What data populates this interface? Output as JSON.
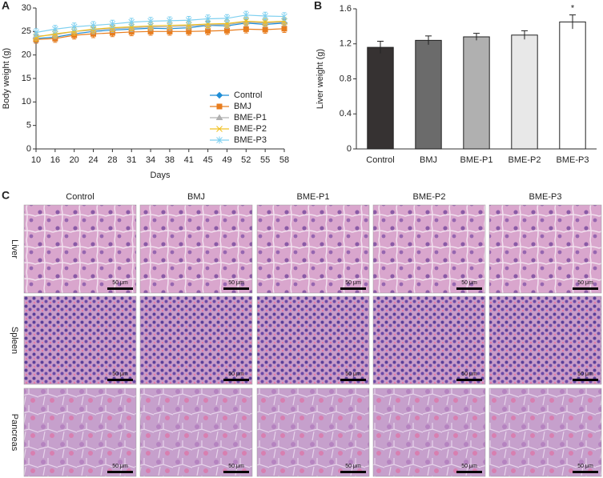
{
  "chart_data": [
    {
      "type": "line",
      "panel_label": "A",
      "x_label": "Days",
      "y_label": "Body weight (g)",
      "categories": [
        "10",
        "16",
        "20",
        "24",
        "28",
        "31",
        "34",
        "38",
        "41",
        "45",
        "49",
        "52",
        "55",
        "58"
      ],
      "ylim": [
        0,
        30
      ],
      "yticks": [
        0,
        5,
        10,
        15,
        20,
        25,
        30
      ],
      "legend": "center right",
      "series": [
        {
          "name": "Control",
          "color": "#1f8dd6",
          "marker": "diamond",
          "values": [
            23.5,
            23.8,
            24.5,
            25,
            25.3,
            25.5,
            25.7,
            25.6,
            25.8,
            26.3,
            26.2,
            26.8,
            26.5,
            26.8
          ],
          "errors": [
            0.8,
            0.8,
            0.8,
            0.8,
            0.8,
            0.8,
            0.8,
            0.8,
            0.8,
            0.8,
            0.8,
            0.8,
            0.8,
            0.8
          ]
        },
        {
          "name": "BMJ",
          "color": "#e87d1e",
          "marker": "square",
          "values": [
            23.3,
            23.5,
            24.2,
            24.5,
            24.7,
            24.9,
            25,
            25,
            25,
            25.1,
            25.2,
            25.5,
            25.4,
            25.6
          ],
          "errors": [
            0.8,
            0.8,
            0.8,
            0.8,
            0.8,
            0.8,
            0.8,
            0.8,
            0.8,
            0.8,
            0.8,
            0.8,
            0.8,
            0.8
          ]
        },
        {
          "name": "BME-P1",
          "color": "#b0b0b0",
          "marker": "triangle",
          "values": [
            24,
            24.3,
            25,
            25.3,
            25.6,
            25.8,
            26,
            26,
            26.2,
            26.4,
            26.5,
            27,
            26.8,
            27
          ],
          "errors": [
            0.8,
            0.8,
            0.8,
            0.8,
            0.8,
            0.8,
            0.8,
            0.8,
            0.8,
            0.8,
            0.8,
            0.8,
            0.8,
            0.8
          ]
        },
        {
          "name": "BME-P2",
          "color": "#f0c020",
          "marker": "x",
          "values": [
            23.8,
            24.5,
            25,
            25.5,
            25.8,
            26,
            26.2,
            26.3,
            26.4,
            26.6,
            26.7,
            27.2,
            27,
            27.2
          ],
          "errors": [
            0.8,
            0.8,
            0.8,
            0.8,
            0.8,
            0.8,
            0.8,
            0.8,
            0.8,
            0.8,
            0.8,
            0.8,
            0.8,
            0.8
          ]
        },
        {
          "name": "BME-P3",
          "color": "#7fd0f0",
          "marker": "asterisk",
          "values": [
            24.8,
            25.5,
            26,
            26.3,
            26.6,
            27,
            27.2,
            27.3,
            27.4,
            27.7,
            27.8,
            28.5,
            28.3,
            28.2
          ],
          "errors": [
            0.8,
            0.8,
            0.8,
            0.8,
            0.8,
            0.8,
            0.8,
            0.8,
            0.8,
            0.8,
            0.8,
            0.8,
            0.8,
            0.8
          ]
        }
      ]
    },
    {
      "type": "bar",
      "panel_label": "B",
      "y_label": "Liver weight (g)",
      "categories": [
        "Control",
        "BMJ",
        "BME-P1",
        "BME-P2",
        "BME-P3"
      ],
      "values": [
        1.16,
        1.24,
        1.28,
        1.3,
        1.45
      ],
      "errors": [
        0.07,
        0.05,
        0.04,
        0.05,
        0.08
      ],
      "colors": [
        "#363232",
        "#6b6b6b",
        "#b0b0b0",
        "#e8e8e8",
        "#ffffff"
      ],
      "ylim": [
        0,
        1.6
      ],
      "yticks": [
        0,
        0.4,
        0.8,
        1.2,
        1.6
      ],
      "annotations": [
        {
          "text": "*",
          "x": "BME-P3"
        }
      ]
    }
  ],
  "histology": {
    "panel_label": "C",
    "columns": [
      "Control",
      "BMJ",
      "BME-P1",
      "BME-P2",
      "BME-P3"
    ],
    "rows": [
      "Liver",
      "Spleen",
      "Pancreas"
    ],
    "scale_bar": "50 μm"
  }
}
